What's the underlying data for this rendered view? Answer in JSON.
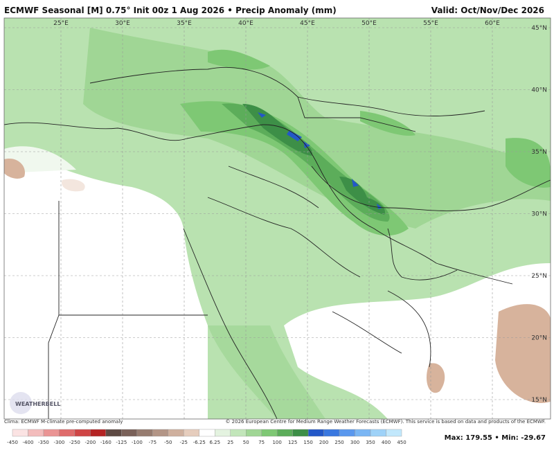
{
  "header": {
    "title": "ECMWF Seasonal [M] 0.75° Init 00z 1 Aug 2026 • Precip Anomaly (mm)",
    "valid": "Valid: Oct/Nov/Dec 2026"
  },
  "longitudes": [
    "25°E",
    "30°E",
    "35°E",
    "40°E",
    "45°E",
    "50°E",
    "55°E",
    "60°E"
  ],
  "latitudes": [
    "45°N",
    "40°N",
    "35°N",
    "30°N",
    "25°N",
    "20°N",
    "15°N"
  ],
  "logo": "WEATHERBELL",
  "footer": {
    "climo": "Clima: ECMWF M-climate pre-computed anomaly",
    "copyright": "© 2026 European Centre for Medium Range Weather Forecasts (ECMWF). This service is based on data and products of the ECMWF."
  },
  "colorbar": {
    "labels": [
      "-450",
      "-400",
      "-350",
      "-300",
      "-250",
      "-200",
      "-160",
      "-125",
      "-100",
      "-75",
      "-50",
      "-25",
      "-6.25",
      "6.25",
      "25",
      "50",
      "75",
      "100",
      "125",
      "150",
      "200",
      "250",
      "300",
      "350",
      "400",
      "450"
    ],
    "colors": [
      "#fbe3e3",
      "#f3bcbc",
      "#ea9494",
      "#df6b6b",
      "#cf4545",
      "#b42424",
      "#5e4a44",
      "#7a6159",
      "#977c70",
      "#b39586",
      "#cfb09e",
      "#e6cdbd",
      "#ffffff",
      "#e4f3e0",
      "#c2e6ba",
      "#a0d695",
      "#7ec874",
      "#5cad5a",
      "#3d8f47",
      "#2358c8",
      "#3a78e0",
      "#5a98ee",
      "#7ab6f4",
      "#9ed2f8",
      "#c2e8fc"
    ]
  },
  "stats": {
    "max": "Max: 179.55",
    "min": "Min: -29.67"
  }
}
